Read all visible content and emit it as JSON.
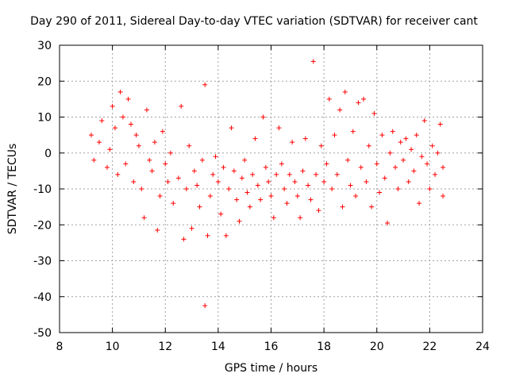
{
  "chart_data": {
    "type": "scatter",
    "title": "Day 290 of 2011, Sidereal Day-to-day VTEC variation (SDTVAR) for receiver cant",
    "xlabel": "GPS time / hours",
    "ylabel": "SDTVAR / TECUs",
    "xlim": [
      8,
      24
    ],
    "ylim": [
      -50,
      30
    ],
    "xticks": [
      "8",
      "10",
      "12",
      "14",
      "16",
      "18",
      "20",
      "22",
      "24"
    ],
    "yticks": [
      "30",
      "20",
      "10",
      "0",
      "-10",
      "-20",
      "-30",
      "-40",
      "-50"
    ],
    "grid": true,
    "marker": "+",
    "color": "#ff0000",
    "series": [
      {
        "name": "SDTVAR",
        "points": [
          [
            9.2,
            5
          ],
          [
            9.3,
            -2
          ],
          [
            9.5,
            3
          ],
          [
            9.6,
            9
          ],
          [
            9.8,
            -4
          ],
          [
            9.9,
            1
          ],
          [
            10.0,
            13
          ],
          [
            10.1,
            7
          ],
          [
            10.2,
            -6
          ],
          [
            10.3,
            17
          ],
          [
            10.4,
            10
          ],
          [
            10.5,
            -3
          ],
          [
            10.6,
            15
          ],
          [
            10.7,
            8
          ],
          [
            10.8,
            -8
          ],
          [
            10.9,
            5
          ],
          [
            11.0,
            2
          ],
          [
            11.1,
            -10
          ],
          [
            11.2,
            -18
          ],
          [
            11.3,
            12
          ],
          [
            11.4,
            -2
          ],
          [
            11.5,
            -5
          ],
          [
            11.6,
            3
          ],
          [
            11.7,
            -21.5
          ],
          [
            11.8,
            -12
          ],
          [
            11.9,
            6
          ],
          [
            12.0,
            -3
          ],
          [
            12.1,
            -8
          ],
          [
            12.2,
            0
          ],
          [
            12.3,
            -14
          ],
          [
            12.5,
            -7
          ],
          [
            12.6,
            13
          ],
          [
            12.7,
            -24
          ],
          [
            12.8,
            -10
          ],
          [
            12.9,
            2
          ],
          [
            13.0,
            -21
          ],
          [
            13.1,
            -5
          ],
          [
            13.2,
            -9
          ],
          [
            13.3,
            -15
          ],
          [
            13.4,
            -2
          ],
          [
            13.5,
            19
          ],
          [
            13.5,
            -42.5
          ],
          [
            13.6,
            -23
          ],
          [
            13.7,
            -12
          ],
          [
            13.8,
            -6
          ],
          [
            13.9,
            -1
          ],
          [
            14.0,
            -8
          ],
          [
            14.1,
            -17
          ],
          [
            14.2,
            -4
          ],
          [
            14.3,
            -23
          ],
          [
            14.4,
            -10
          ],
          [
            14.5,
            7
          ],
          [
            14.6,
            -5
          ],
          [
            14.7,
            -13
          ],
          [
            14.8,
            -19
          ],
          [
            14.9,
            -7
          ],
          [
            15.0,
            -2
          ],
          [
            15.1,
            -11
          ],
          [
            15.2,
            -15
          ],
          [
            15.3,
            -6
          ],
          [
            15.4,
            4
          ],
          [
            15.5,
            -9
          ],
          [
            15.6,
            -13
          ],
          [
            15.7,
            10
          ],
          [
            15.8,
            -4
          ],
          [
            15.9,
            -8
          ],
          [
            16.0,
            -12
          ],
          [
            16.1,
            -18
          ],
          [
            16.2,
            -6
          ],
          [
            16.3,
            7
          ],
          [
            16.4,
            -3
          ],
          [
            16.5,
            -10
          ],
          [
            16.6,
            -14
          ],
          [
            16.7,
            -6
          ],
          [
            16.8,
            3
          ],
          [
            16.9,
            -8
          ],
          [
            17.0,
            -12
          ],
          [
            17.1,
            -18
          ],
          [
            17.2,
            -5
          ],
          [
            17.3,
            4
          ],
          [
            17.4,
            -9
          ],
          [
            17.5,
            -13
          ],
          [
            17.6,
            25.5
          ],
          [
            17.7,
            -6
          ],
          [
            17.8,
            -16
          ],
          [
            17.9,
            2
          ],
          [
            18.0,
            -8
          ],
          [
            18.1,
            -3
          ],
          [
            18.2,
            15
          ],
          [
            18.3,
            -10
          ],
          [
            18.4,
            5
          ],
          [
            18.5,
            -6
          ],
          [
            18.6,
            12
          ],
          [
            18.7,
            -15
          ],
          [
            18.8,
            17
          ],
          [
            18.9,
            -2
          ],
          [
            19.0,
            -9
          ],
          [
            19.1,
            6
          ],
          [
            19.2,
            -12
          ],
          [
            19.3,
            14
          ],
          [
            19.4,
            -4
          ],
          [
            19.5,
            15
          ],
          [
            19.6,
            -8
          ],
          [
            19.7,
            2
          ],
          [
            19.8,
            -15
          ],
          [
            19.9,
            11
          ],
          [
            20.0,
            -3
          ],
          [
            20.1,
            -11
          ],
          [
            20.2,
            5
          ],
          [
            20.3,
            -7
          ],
          [
            20.4,
            -19.5
          ],
          [
            20.5,
            0
          ],
          [
            20.6,
            6
          ],
          [
            20.7,
            -4
          ],
          [
            20.8,
            -10
          ],
          [
            20.9,
            3
          ],
          [
            21.0,
            -2
          ],
          [
            21.1,
            4
          ],
          [
            21.2,
            -8
          ],
          [
            21.3,
            1
          ],
          [
            21.4,
            -5
          ],
          [
            21.5,
            5
          ],
          [
            21.6,
            -14
          ],
          [
            21.7,
            -1
          ],
          [
            21.8,
            9
          ],
          [
            21.9,
            -3
          ],
          [
            22.0,
            -10
          ],
          [
            22.1,
            2
          ],
          [
            22.2,
            -6
          ],
          [
            22.3,
            0
          ],
          [
            22.4,
            8
          ],
          [
            22.5,
            -4
          ],
          [
            22.5,
            -12
          ]
        ]
      }
    ]
  }
}
